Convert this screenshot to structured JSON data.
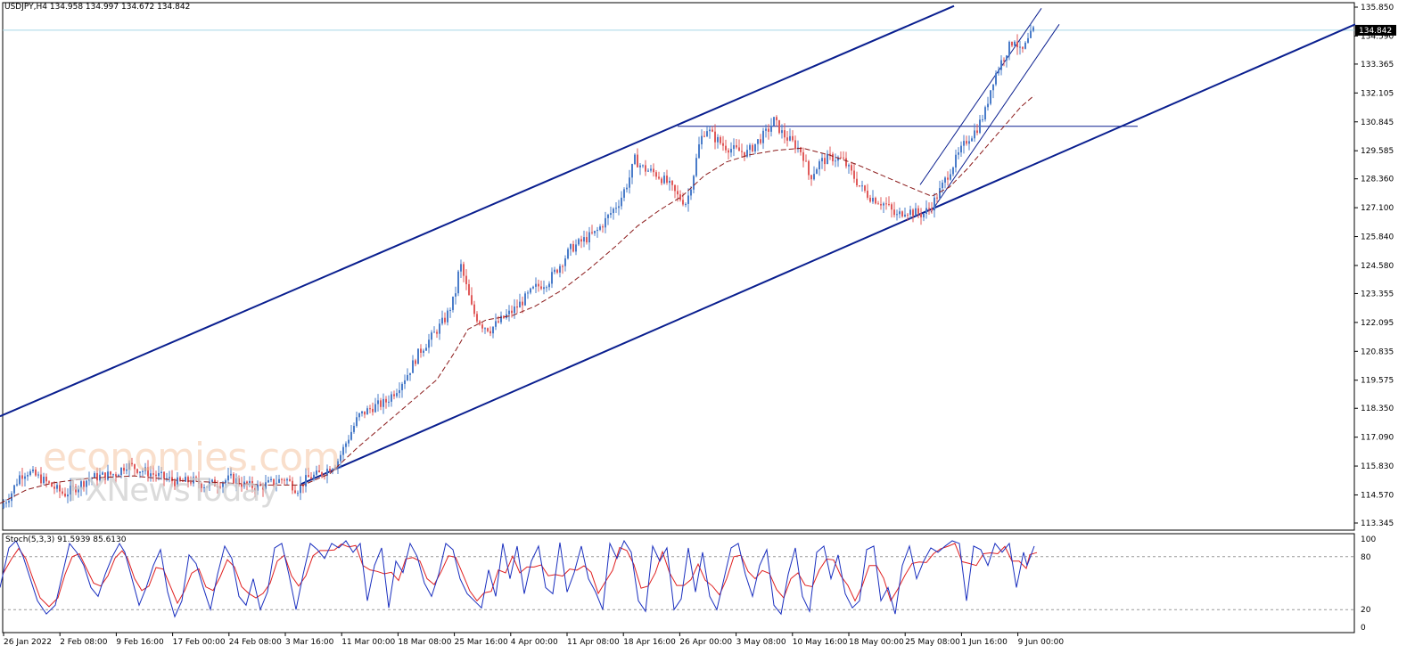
{
  "header": {
    "symbol": "USDJPY,H4",
    "ohlc": "134.958 134.997 134.672 134.842"
  },
  "watermark": {
    "line1": "economies.com",
    "line2": "FXNewsToday"
  },
  "stochastic": {
    "label": "Stoch(5,3,3) 91.5939 85.6130",
    "levels": [
      100,
      80,
      20,
      0
    ]
  },
  "colors": {
    "up_candle": "#4a7cc9",
    "down_candle": "#e05a5a",
    "channel": "#0a1f8f",
    "moving_average": "#8b1a1a",
    "stoch_main": "#1a2fbf",
    "stoch_signal": "#e02020",
    "price_line": "#a8d8e8",
    "current_price_bg": "#000000"
  },
  "chart_data": {
    "type": "candlestick",
    "title": "USDJPY,H4",
    "current_price": "134.842",
    "y_axis_labels": [
      "135.850",
      "134.590",
      "133.365",
      "132.105",
      "130.845",
      "129.585",
      "128.360",
      "127.100",
      "125.840",
      "124.580",
      "123.355",
      "122.095",
      "120.835",
      "119.575",
      "118.350",
      "117.090",
      "115.830",
      "114.570",
      "113.345"
    ],
    "ylim": [
      113.345,
      135.85
    ],
    "x_axis_labels": [
      "26 Jan 2022",
      "2 Feb 08:00",
      "9 Feb 16:00",
      "17 Feb 00:00",
      "24 Feb 08:00",
      "3 Mar 16:00",
      "11 Mar 00:00",
      "18 Mar 08:00",
      "25 Mar 16:00",
      "4 Apr 00:00",
      "11 Apr 08:00",
      "18 Apr 16:00",
      "26 Apr 00:00",
      "3 May 08:00",
      "10 May 16:00",
      "18 May 00:00",
      "25 May 08:00",
      "1 Jun 16:00",
      "9 Jun 00:00"
    ],
    "price_path": [
      [
        0,
        114.0
      ],
      [
        12,
        114.6
      ],
      [
        22,
        115.4
      ],
      [
        30,
        115.6
      ],
      [
        45,
        115.3
      ],
      [
        60,
        114.9
      ],
      [
        72,
        114.6
      ],
      [
        85,
        114.9
      ],
      [
        100,
        115.3
      ],
      [
        115,
        115.4
      ],
      [
        130,
        115.5
      ],
      [
        142,
        115.9
      ],
      [
        155,
        115.7
      ],
      [
        170,
        115.5
      ],
      [
        185,
        115.3
      ],
      [
        200,
        115.1
      ],
      [
        215,
        115.2
      ],
      [
        230,
        115.0
      ],
      [
        245,
        115.1
      ],
      [
        260,
        115.3
      ],
      [
        275,
        115.0
      ],
      [
        290,
        114.9
      ],
      [
        305,
        115.1
      ],
      [
        320,
        115.3
      ],
      [
        333,
        114.8
      ],
      [
        345,
        115.3
      ],
      [
        360,
        115.5
      ],
      [
        378,
        116.0
      ],
      [
        390,
        117.0
      ],
      [
        402,
        118.0
      ],
      [
        418,
        118.4
      ],
      [
        432,
        118.6
      ],
      [
        445,
        119.2
      ],
      [
        458,
        119.9
      ],
      [
        470,
        120.8
      ],
      [
        485,
        121.5
      ],
      [
        500,
        122.3
      ],
      [
        510,
        123.2
      ],
      [
        516,
        124.7
      ],
      [
        522,
        123.8
      ],
      [
        530,
        122.6
      ],
      [
        540,
        122.0
      ],
      [
        550,
        121.8
      ],
      [
        562,
        122.2
      ],
      [
        575,
        122.6
      ],
      [
        588,
        123.1
      ],
      [
        600,
        123.6
      ],
      [
        615,
        123.9
      ],
      [
        628,
        124.6
      ],
      [
        640,
        125.3
      ],
      [
        655,
        125.7
      ],
      [
        668,
        126.0
      ],
      [
        680,
        126.6
      ],
      [
        695,
        127.4
      ],
      [
        705,
        128.3
      ],
      [
        712,
        129.2
      ],
      [
        722,
        128.8
      ],
      [
        735,
        128.6
      ],
      [
        748,
        128.2
      ],
      [
        760,
        127.6
      ],
      [
        770,
        127.3
      ],
      [
        778,
        128.6
      ],
      [
        785,
        130.0
      ],
      [
        792,
        130.6
      ],
      [
        800,
        130.2
      ],
      [
        812,
        129.8
      ],
      [
        825,
        129.6
      ],
      [
        838,
        129.5
      ],
      [
        850,
        130.0
      ],
      [
        860,
        130.4
      ],
      [
        868,
        130.9
      ],
      [
        878,
        130.3
      ],
      [
        890,
        129.9
      ],
      [
        900,
        129.5
      ],
      [
        908,
        128.4
      ],
      [
        920,
        129.1
      ],
      [
        932,
        129.3
      ],
      [
        945,
        129.2
      ],
      [
        955,
        128.6
      ],
      [
        965,
        128.0
      ],
      [
        975,
        127.6
      ],
      [
        985,
        127.4
      ],
      [
        995,
        127.2
      ],
      [
        1005,
        126.7
      ],
      [
        1015,
        127.0
      ],
      [
        1025,
        126.9
      ],
      [
        1035,
        126.8
      ],
      [
        1045,
        127.2
      ],
      [
        1055,
        127.9
      ],
      [
        1065,
        128.7
      ],
      [
        1075,
        129.4
      ],
      [
        1085,
        130.1
      ],
      [
        1095,
        130.5
      ],
      [
        1105,
        131.3
      ],
      [
        1113,
        132.6
      ],
      [
        1122,
        133.4
      ],
      [
        1130,
        134.0
      ],
      [
        1138,
        134.5
      ],
      [
        1145,
        133.8
      ],
      [
        1152,
        134.3
      ],
      [
        1160,
        134.9
      ]
    ],
    "moving_average_path": [
      [
        0,
        114.2
      ],
      [
        30,
        114.8
      ],
      [
        60,
        115.1
      ],
      [
        100,
        115.3
      ],
      [
        150,
        115.4
      ],
      [
        200,
        115.2
      ],
      [
        250,
        115.1
      ],
      [
        300,
        115.0
      ],
      [
        340,
        115.0
      ],
      [
        370,
        115.5
      ],
      [
        400,
        116.6
      ],
      [
        430,
        117.6
      ],
      [
        460,
        118.6
      ],
      [
        490,
        119.6
      ],
      [
        510,
        120.8
      ],
      [
        525,
        121.8
      ],
      [
        545,
        122.2
      ],
      [
        575,
        122.4
      ],
      [
        600,
        122.8
      ],
      [
        630,
        123.5
      ],
      [
        660,
        124.4
      ],
      [
        690,
        125.4
      ],
      [
        715,
        126.3
      ],
      [
        740,
        127.0
      ],
      [
        765,
        127.6
      ],
      [
        790,
        128.5
      ],
      [
        815,
        129.1
      ],
      [
        840,
        129.4
      ],
      [
        870,
        129.6
      ],
      [
        900,
        129.7
      ],
      [
        930,
        129.4
      ],
      [
        960,
        129.0
      ],
      [
        990,
        128.5
      ],
      [
        1020,
        128.0
      ],
      [
        1045,
        127.6
      ],
      [
        1065,
        128.0
      ],
      [
        1085,
        128.8
      ],
      [
        1105,
        129.7
      ],
      [
        1125,
        130.6
      ],
      [
        1145,
        131.5
      ],
      [
        1160,
        132.0
      ]
    ],
    "horizontal_resistance": 130.65,
    "channel_upper_line": [
      [
        0,
        118.0
      ],
      [
        1070,
        135.9
      ]
    ],
    "channel_lower_line": [
      [
        338,
        115.05
      ],
      [
        1520,
        135.1
      ]
    ],
    "short_channel_upper": [
      [
        1032,
        128.1
      ],
      [
        1168,
        135.8
      ]
    ],
    "short_channel_lower": [
      [
        1044,
        126.9
      ],
      [
        1188,
        135.1
      ]
    ],
    "stochastic_main": [
      [
        0,
        45
      ],
      [
        10,
        90
      ],
      [
        18,
        98
      ],
      [
        26,
        80
      ],
      [
        34,
        55
      ],
      [
        42,
        30
      ],
      [
        52,
        15
      ],
      [
        62,
        25
      ],
      [
        70,
        60
      ],
      [
        78,
        95
      ],
      [
        86,
        85
      ],
      [
        94,
        70
      ],
      [
        102,
        45
      ],
      [
        110,
        35
      ],
      [
        118,
        60
      ],
      [
        126,
        80
      ],
      [
        134,
        95
      ],
      [
        140,
        85
      ],
      [
        148,
        55
      ],
      [
        156,
        25
      ],
      [
        164,
        45
      ],
      [
        172,
        70
      ],
      [
        180,
        88
      ],
      [
        188,
        40
      ],
      [
        196,
        12
      ],
      [
        204,
        30
      ],
      [
        212,
        82
      ],
      [
        220,
        72
      ],
      [
        228,
        45
      ],
      [
        236,
        20
      ],
      [
        244,
        60
      ],
      [
        252,
        92
      ],
      [
        260,
        78
      ],
      [
        268,
        35
      ],
      [
        276,
        25
      ],
      [
        284,
        55
      ],
      [
        292,
        20
      ],
      [
        300,
        40
      ],
      [
        308,
        90
      ],
      [
        316,
        95
      ],
      [
        324,
        60
      ],
      [
        332,
        20
      ],
      [
        340,
        60
      ],
      [
        348,
        95
      ],
      [
        356,
        88
      ],
      [
        364,
        78
      ],
      [
        372,
        95
      ],
      [
        380,
        90
      ],
      [
        388,
        98
      ],
      [
        396,
        85
      ],
      [
        404,
        95
      ],
      [
        412,
        30
      ],
      [
        420,
        70
      ],
      [
        428,
        90
      ],
      [
        436,
        22
      ],
      [
        444,
        75
      ],
      [
        452,
        62
      ],
      [
        460,
        95
      ],
      [
        468,
        80
      ],
      [
        476,
        50
      ],
      [
        484,
        35
      ],
      [
        492,
        60
      ],
      [
        500,
        95
      ],
      [
        508,
        88
      ],
      [
        516,
        55
      ],
      [
        524,
        38
      ],
      [
        532,
        30
      ],
      [
        540,
        22
      ],
      [
        548,
        65
      ],
      [
        556,
        35
      ],
      [
        564,
        95
      ],
      [
        572,
        55
      ],
      [
        580,
        92
      ],
      [
        588,
        38
      ],
      [
        596,
        75
      ],
      [
        604,
        92
      ],
      [
        612,
        45
      ],
      [
        620,
        38
      ],
      [
        628,
        96
      ],
      [
        636,
        40
      ],
      [
        644,
        62
      ],
      [
        652,
        92
      ],
      [
        660,
        55
      ],
      [
        668,
        40
      ],
      [
        676,
        20
      ],
      [
        684,
        95
      ],
      [
        692,
        78
      ],
      [
        700,
        98
      ],
      [
        708,
        85
      ],
      [
        716,
        30
      ],
      [
        724,
        18
      ],
      [
        732,
        92
      ],
      [
        740,
        75
      ],
      [
        748,
        90
      ],
      [
        756,
        20
      ],
      [
        764,
        32
      ],
      [
        772,
        90
      ],
      [
        780,
        40
      ],
      [
        788,
        85
      ],
      [
        796,
        35
      ],
      [
        804,
        20
      ],
      [
        812,
        55
      ],
      [
        820,
        90
      ],
      [
        828,
        95
      ],
      [
        836,
        60
      ],
      [
        844,
        35
      ],
      [
        852,
        70
      ],
      [
        860,
        88
      ],
      [
        868,
        25
      ],
      [
        876,
        15
      ],
      [
        884,
        60
      ],
      [
        892,
        90
      ],
      [
        900,
        35
      ],
      [
        908,
        18
      ],
      [
        916,
        85
      ],
      [
        924,
        92
      ],
      [
        932,
        55
      ],
      [
        940,
        82
      ],
      [
        948,
        38
      ],
      [
        956,
        22
      ],
      [
        964,
        30
      ],
      [
        972,
        88
      ],
      [
        980,
        92
      ],
      [
        988,
        30
      ],
      [
        996,
        45
      ],
      [
        1004,
        15
      ],
      [
        1012,
        70
      ],
      [
        1020,
        92
      ],
      [
        1028,
        55
      ],
      [
        1036,
        75
      ],
      [
        1044,
        90
      ],
      [
        1052,
        85
      ],
      [
        1060,
        92
      ],
      [
        1068,
        98
      ],
      [
        1076,
        95
      ],
      [
        1084,
        30
      ],
      [
        1092,
        92
      ],
      [
        1100,
        88
      ],
      [
        1108,
        70
      ],
      [
        1116,
        95
      ],
      [
        1124,
        85
      ],
      [
        1132,
        95
      ],
      [
        1140,
        45
      ],
      [
        1148,
        85
      ],
      [
        1152,
        70
      ],
      [
        1160,
        92
      ]
    ]
  }
}
